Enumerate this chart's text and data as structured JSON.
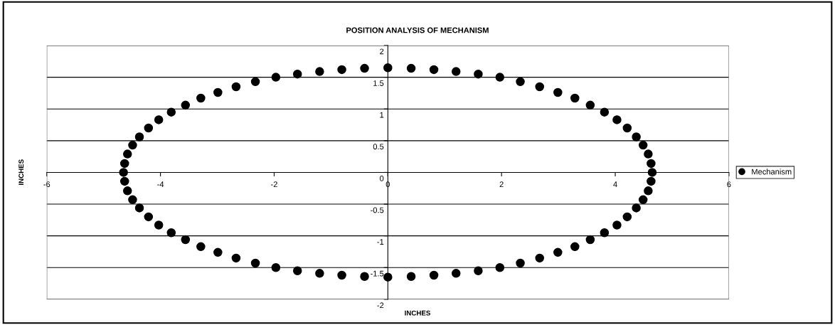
{
  "chart_data": {
    "type": "scatter",
    "title": "POSITION ANALYSIS OF MECHANISM",
    "xlabel": "INCHES",
    "ylabel": "INCHES",
    "xlim": [
      -6,
      6
    ],
    "xticks": [
      -6,
      -4,
      -2,
      0,
      2,
      4,
      6
    ],
    "ylim": [
      -2,
      2
    ],
    "yticks": [
      -2,
      -1.5,
      -1,
      -0.5,
      0,
      0.5,
      1,
      1.5,
      2
    ],
    "grid": "y",
    "legend": "right",
    "marker": "circle",
    "series": [
      {
        "name": "Mechanism",
        "color": "#000000",
        "x": [
          4.65,
          4.63,
          4.58,
          4.49,
          4.37,
          4.21,
          4.03,
          3.81,
          3.56,
          3.29,
          2.99,
          2.67,
          2.33,
          1.97,
          1.59,
          1.2,
          0.81,
          0.41,
          0,
          -0.41,
          -0.81,
          -1.2,
          -1.59,
          -1.97,
          -2.33,
          -2.67,
          -2.99,
          -3.29,
          -3.56,
          -3.81,
          -4.03,
          -4.21,
          -4.37,
          -4.49,
          -4.58,
          -4.63,
          -4.65,
          -4.63,
          -4.58,
          -4.49,
          -4.37,
          -4.21,
          -4.03,
          -3.81,
          -3.56,
          -3.29,
          -2.99,
          -2.67,
          -2.33,
          -1.97,
          -1.59,
          -1.2,
          -0.81,
          -0.41,
          0,
          0.41,
          0.81,
          1.2,
          1.59,
          1.97,
          2.33,
          2.67,
          2.99,
          3.29,
          3.56,
          3.81,
          4.03,
          4.21,
          4.37,
          4.49,
          4.58,
          4.63
        ],
        "values": [
          0,
          0.14,
          0.29,
          0.43,
          0.56,
          0.7,
          0.83,
          0.95,
          1.06,
          1.17,
          1.26,
          1.35,
          1.43,
          1.5,
          1.55,
          1.59,
          1.62,
          1.64,
          1.65,
          1.64,
          1.62,
          1.59,
          1.55,
          1.5,
          1.43,
          1.35,
          1.26,
          1.17,
          1.06,
          0.95,
          0.83,
          0.7,
          0.56,
          0.43,
          0.29,
          0.14,
          0,
          -0.14,
          -0.29,
          -0.43,
          -0.56,
          -0.7,
          -0.83,
          -0.95,
          -1.06,
          -1.17,
          -1.26,
          -1.35,
          -1.43,
          -1.5,
          -1.55,
          -1.59,
          -1.62,
          -1.64,
          -1.65,
          -1.64,
          -1.62,
          -1.59,
          -1.55,
          -1.5,
          -1.43,
          -1.35,
          -1.26,
          -1.17,
          -1.06,
          -0.95,
          -0.83,
          -0.7,
          -0.56,
          -0.43,
          -0.29,
          -0.14
        ]
      }
    ]
  }
}
